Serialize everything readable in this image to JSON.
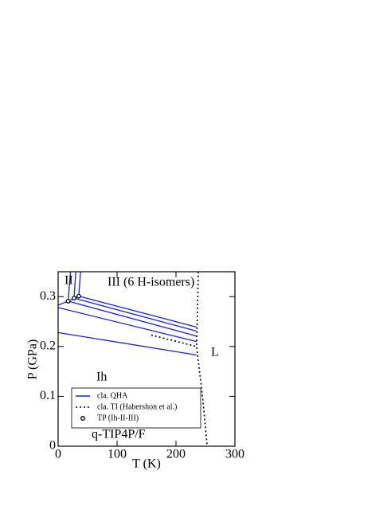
{
  "chart_data": {
    "type": "line",
    "xlabel": "T (K)",
    "ylabel": "P (GPa)",
    "xlim": [
      0,
      300
    ],
    "ylim": [
      0,
      0.35
    ],
    "xticks": [
      0,
      100,
      200,
      300
    ],
    "yticks": [
      0,
      0.1,
      0.2,
      0.3
    ],
    "annotations": [
      "II",
      "III (6 H-isomers)",
      "L",
      "Ih",
      "q-TIP4P/F"
    ],
    "series": [
      {
        "name": "cla. QHA",
        "color": "#1f1fd6",
        "linestyle": "solid",
        "x": [
          0,
          235,
          null,
          0,
          17,
          21,
          null,
          17,
          235,
          null,
          17,
          27,
          30,
          null,
          27,
          235,
          null,
          27,
          35,
          38,
          null,
          35,
          235,
          null,
          0,
          235
        ],
        "y": [
          0.228,
          0.183,
          null,
          0.283,
          0.291,
          0.35,
          null,
          0.291,
          0.221,
          null,
          0.291,
          0.297,
          0.35,
          null,
          0.297,
          0.231,
          null,
          0.297,
          0.301,
          0.35,
          null,
          0.301,
          0.239,
          null,
          0.278,
          0.21
        ]
      },
      {
        "name": "cla. TI (Habershon et al.)",
        "color": "#000000",
        "linestyle": "dotted",
        "x": [
          158,
          235,
          null,
          238,
          235,
          245,
          253
        ],
        "y": [
          0.223,
          0.2,
          null,
          0.35,
          0.2,
          0.1,
          0
        ]
      },
      {
        "name": "TP (Ih-II-III)",
        "color": "#000000",
        "linestyle": "marker",
        "x": [
          17,
          27,
          35
        ],
        "y": [
          0.291,
          0.297,
          0.301
        ]
      }
    ]
  }
}
